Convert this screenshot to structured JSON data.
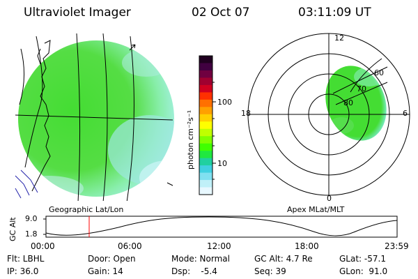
{
  "header": {
    "title": "Ultraviolet Imager",
    "date": "02 Oct 07",
    "time": "03:11:09 UT"
  },
  "colors": {
    "disk_green": "#44dd33",
    "disk_cyan": "#88eeee",
    "grid_line": "#000000",
    "marker_red": "#ff0000"
  },
  "left_panel": {
    "label": "Geographic Lat/Lon",
    "icon": "north-arrow-icon"
  },
  "colorbar": {
    "unit_label": "photon cm⁻²s⁻¹",
    "ticks": [
      "100",
      "10"
    ],
    "colors": [
      "#200020",
      "#400040",
      "#700040",
      "#a00030",
      "#d00020",
      "#ff3000",
      "#ff7000",
      "#ffa000",
      "#ffd000",
      "#ffff00",
      "#c0ff00",
      "#80ff00",
      "#40ff00",
      "#20e840",
      "#20d0a0",
      "#40d0e0",
      "#80e0f0",
      "#c0f0f8",
      "#e8f8ff"
    ]
  },
  "right_panel": {
    "label": "Apex MLat/MLT",
    "mlt_labels": {
      "top": "12",
      "left": "18",
      "right": "6",
      "bottom": "0"
    },
    "lat_labels": [
      "60",
      "70",
      "80"
    ]
  },
  "timeline": {
    "axis_label": "GC Alt",
    "y_ticks": [
      "9.0",
      "1.8"
    ],
    "x_ticks": [
      "00:00",
      "06:00",
      "12:00",
      "18:00",
      "23:59"
    ]
  },
  "footer": {
    "filter": "Flt: LBHL",
    "door": "Door: Open",
    "mode": "Mode: Normal",
    "gc_alt": "GC Alt: 4.7 Re",
    "glat": "GLat: -57.1",
    "ip": "IP: 36.0",
    "gain": "Gain: 14",
    "dsp": "Dsp:    -5.4",
    "seq": "Seq: 39",
    "glon": "GLon:  91.0"
  }
}
